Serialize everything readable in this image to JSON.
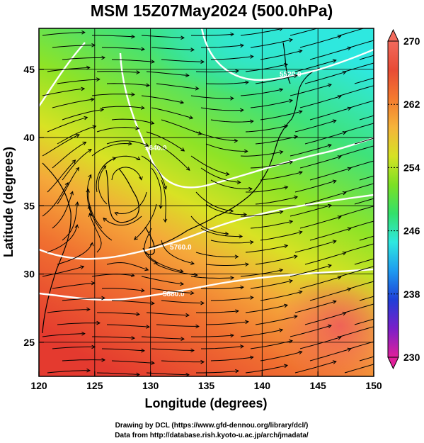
{
  "title": "MSM 15Z07May2024 (500.0hPa)",
  "map": {
    "xlabel": "Longitude (degrees)",
    "ylabel": "Latitude  (degrees)",
    "xticks": [
      "120",
      "125",
      "130",
      "135",
      "140",
      "145",
      "150"
    ],
    "yticks": [
      "45",
      "40",
      "35",
      "30",
      "25"
    ],
    "lon_range": [
      120,
      150
    ],
    "lat_range": [
      22.5,
      48
    ],
    "field": "temperature (K)",
    "contour_labels": [
      "5520.0",
      "5640.0",
      "5760.0",
      "5880.0"
    ],
    "overlay": "streamlines (wind)"
  },
  "colorbar": {
    "ticks": [
      "270",
      "262",
      "254",
      "246",
      "238",
      "230"
    ],
    "range": [
      230,
      270
    ],
    "colors": [
      "#e0209a",
      "#7a1fc9",
      "#1f3fd8",
      "#1e9bf0",
      "#2ee8e0",
      "#33e06a",
      "#7be024",
      "#d6e224",
      "#f5b43a",
      "#f47a2e",
      "#e84b35",
      "#f26a5c"
    ]
  },
  "credits": {
    "line1": "Drawing by DCL (https://www.gfd-dennou.org/library/dcl/)",
    "line2": "Data from http://database.rish.kyoto-u.ac.jp/arch/jmadata/"
  }
}
